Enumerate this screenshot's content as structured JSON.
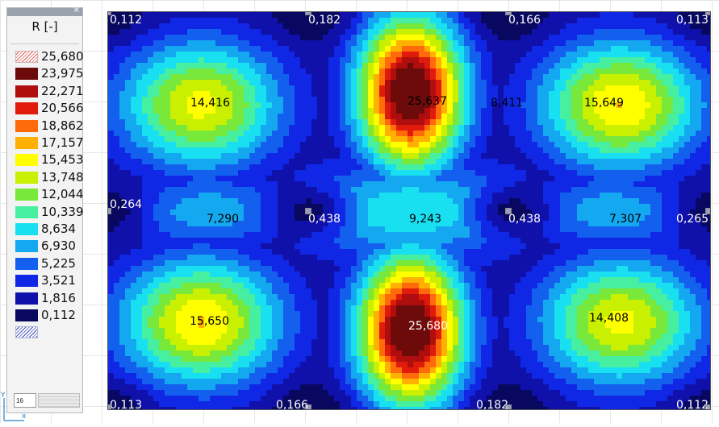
{
  "legend": {
    "title": "R [-]",
    "close_label": "×",
    "input_value": "16",
    "items": [
      {
        "label": "25,680",
        "color": "#e06060",
        "kind": "hatch-top"
      },
      {
        "label": "23,975",
        "color": "#6d0a0a"
      },
      {
        "label": "22,271",
        "color": "#b00e0e"
      },
      {
        "label": "20,566",
        "color": "#e01b0b"
      },
      {
        "label": "18,862",
        "color": "#ff6a0a"
      },
      {
        "label": "17,157",
        "color": "#ffb000"
      },
      {
        "label": "15,453",
        "color": "#ffff00"
      },
      {
        "label": "13,748",
        "color": "#c8f000"
      },
      {
        "label": "12,044",
        "color": "#78e83a"
      },
      {
        "label": "10,339",
        "color": "#46f0a0"
      },
      {
        "label": "8,634",
        "color": "#18e0f0"
      },
      {
        "label": "6,930",
        "color": "#14a8f0"
      },
      {
        "label": "5,225",
        "color": "#1460ee"
      },
      {
        "label": "3,521",
        "color": "#1028e6"
      },
      {
        "label": "1,816",
        "color": "#1010aa"
      },
      {
        "label": "0,112",
        "color": "#080860"
      },
      {
        "label": "",
        "color": "#3c4dbf",
        "kind": "hatch-bot"
      }
    ]
  },
  "plot": {
    "value_labels": [
      {
        "id": "tl",
        "text": "0,112"
      },
      {
        "id": "tm1",
        "text": "0,182"
      },
      {
        "id": "tm2",
        "text": "0,166"
      },
      {
        "id": "tr",
        "text": "0,113"
      },
      {
        "id": "a1",
        "text": "14,416"
      },
      {
        "id": "a2",
        "text": "25,637"
      },
      {
        "id": "a3",
        "text": "8,411"
      },
      {
        "id": "a4",
        "text": "15,649"
      },
      {
        "id": "ml",
        "text": "0,264"
      },
      {
        "id": "m1",
        "text": "7,290"
      },
      {
        "id": "m2",
        "text": "0,438"
      },
      {
        "id": "m3",
        "text": "9,243"
      },
      {
        "id": "m4",
        "text": "0,438"
      },
      {
        "id": "m5",
        "text": "7,307"
      },
      {
        "id": "mr",
        "text": "0,265"
      },
      {
        "id": "b1",
        "text": "15,650"
      },
      {
        "id": "b2",
        "text": "25,680"
      },
      {
        "id": "b3",
        "text": "14,408"
      },
      {
        "id": "bl",
        "text": "0,113"
      },
      {
        "id": "bm1",
        "text": "0,166"
      },
      {
        "id": "bm2",
        "text": "0,182"
      },
      {
        "id": "br",
        "text": "0,112"
      }
    ]
  },
  "axis": {
    "x_label": "x",
    "y_label": "Y"
  }
}
